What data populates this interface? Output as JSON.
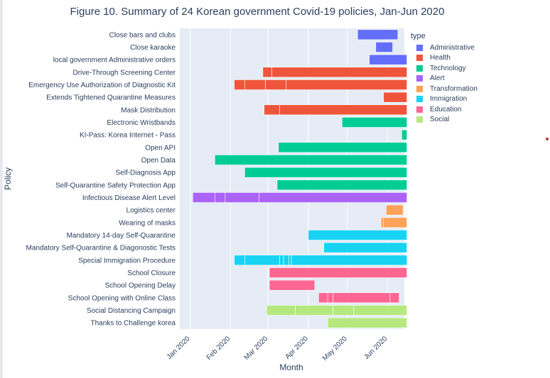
{
  "chart_data": {
    "type": "timeline",
    "title": "Figure 10. Summary of 24 Korean government Covid-19 policies, Jan-Jun 2020",
    "xlabel": "Month",
    "ylabel": "Policy",
    "x_ticks": [
      "Jan 2020",
      "Feb 2020",
      "Mar 2020",
      "Apr 2020",
      "May 2020",
      "Jun 2020"
    ],
    "x_range": [
      "2019-12-24",
      "2020-06-14"
    ],
    "legend_title": "type",
    "legend_position": "top-right",
    "categories": [
      {
        "name": "Administrative",
        "color": "#636efa"
      },
      {
        "name": "Health",
        "color": "#ef553b"
      },
      {
        "name": "Technology",
        "color": "#00cc96"
      },
      {
        "name": "Alert",
        "color": "#ab63fa"
      },
      {
        "name": "Transformation",
        "color": "#ffa15a"
      },
      {
        "name": "Immigration",
        "color": "#19d3f3"
      },
      {
        "name": "Education",
        "color": "#ff6692"
      },
      {
        "name": "Social",
        "color": "#b6e880"
      }
    ],
    "policies": [
      {
        "name": "Close bars and clubs",
        "type": "Administrative",
        "segments": [
          [
            "2020-05-09",
            "2020-06-09"
          ]
        ]
      },
      {
        "name": "Close karaoke",
        "type": "Administrative",
        "segments": [
          [
            "2020-05-23",
            "2020-06-05"
          ]
        ]
      },
      {
        "name": "local government Administrative orders",
        "type": "Administrative",
        "segments": [
          [
            "2020-05-18",
            "2020-06-16"
          ]
        ]
      },
      {
        "name": "Drive-Through Screening Center",
        "type": "Health",
        "segments": [
          [
            "2020-02-26",
            "2020-03-04"
          ],
          [
            "2020-03-04",
            "2020-06-16"
          ]
        ]
      },
      {
        "name": "Emergency Use Authorization of Diagnostic Kit",
        "type": "Health",
        "segments": [
          [
            "2020-02-04",
            "2020-02-12"
          ],
          [
            "2020-02-12",
            "2020-02-28"
          ],
          [
            "2020-02-28",
            "2020-03-15"
          ],
          [
            "2020-03-15",
            "2020-06-16"
          ]
        ]
      },
      {
        "name": "Extends Tightened Quarantine Measures",
        "type": "Health",
        "segments": [
          [
            "2020-05-29",
            "2020-06-16"
          ]
        ]
      },
      {
        "name": "Mask Distribution",
        "type": "Health",
        "segments": [
          [
            "2020-02-27",
            "2020-03-10"
          ],
          [
            "2020-03-10",
            "2020-06-16"
          ]
        ]
      },
      {
        "name": "Electronic Wristbands",
        "type": "Technology",
        "segments": [
          [
            "2020-04-27",
            "2020-06-16"
          ]
        ]
      },
      {
        "name": "KI-Pass: Korea Internet - Pass",
        "type": "Technology",
        "segments": [
          [
            "2020-06-12",
            "2020-06-16"
          ]
        ]
      },
      {
        "name": "Open API",
        "type": "Technology",
        "segments": [
          [
            "2020-03-09",
            "2020-06-16"
          ]
        ]
      },
      {
        "name": "Open Data",
        "type": "Technology",
        "segments": [
          [
            "2020-01-20",
            "2020-06-16"
          ]
        ]
      },
      {
        "name": "Self-Diagnosis App",
        "type": "Technology",
        "segments": [
          [
            "2020-02-12",
            "2020-06-16"
          ]
        ]
      },
      {
        "name": "Self-Quarantine Safety Protection App",
        "type": "Technology",
        "segments": [
          [
            "2020-03-08",
            "2020-06-16"
          ]
        ]
      },
      {
        "name": "Infectious Disease Alert Level",
        "type": "Alert",
        "segments": [
          [
            "2020-01-03",
            "2020-01-20"
          ],
          [
            "2020-01-20",
            "2020-01-28"
          ],
          [
            "2020-01-28",
            "2020-02-23"
          ],
          [
            "2020-02-23",
            "2020-06-16"
          ]
        ]
      },
      {
        "name": "Logistics center",
        "type": "Transformation",
        "segments": [
          [
            "2020-05-31",
            "2020-06-13"
          ]
        ]
      },
      {
        "name": "Wearing of masks",
        "type": "Transformation",
        "segments": [
          [
            "2020-05-27",
            "2020-05-29"
          ],
          [
            "2020-05-29",
            "2020-06-16"
          ]
        ]
      },
      {
        "name": "Mandatory 14-day Self-Quarantine",
        "type": "Immigration",
        "segments": [
          [
            "2020-04-01",
            "2020-06-16"
          ]
        ]
      },
      {
        "name": "Mandatory Self-Quarantine & Diagonostic Tests",
        "type": "Immigration",
        "segments": [
          [
            "2020-04-13",
            "2020-06-16"
          ]
        ]
      },
      {
        "name": "Special Immigration Procedure",
        "type": "Immigration",
        "segments": [
          [
            "2020-02-04",
            "2020-02-12"
          ],
          [
            "2020-02-12",
            "2020-03-10"
          ],
          [
            "2020-03-10",
            "2020-03-13"
          ],
          [
            "2020-03-13",
            "2020-03-17"
          ],
          [
            "2020-03-17",
            "2020-03-19"
          ],
          [
            "2020-03-19",
            "2020-06-16"
          ]
        ]
      },
      {
        "name": "School Closure",
        "type": "Education",
        "segments": [
          [
            "2020-03-02",
            "2020-06-16"
          ]
        ]
      },
      {
        "name": "School Opening Delay",
        "type": "Education",
        "segments": [
          [
            "2020-03-02",
            "2020-04-06"
          ]
        ]
      },
      {
        "name": "School Opening with Online Class",
        "type": "Education",
        "segments": [
          [
            "2020-04-09",
            "2020-04-16"
          ],
          [
            "2020-04-16",
            "2020-04-20"
          ],
          [
            "2020-04-20",
            "2020-06-03"
          ],
          [
            "2020-06-03",
            "2020-06-10"
          ]
        ]
      },
      {
        "name": "Social Distancing Campaign",
        "type": "Social",
        "segments": [
          [
            "2020-02-29",
            "2020-03-22"
          ],
          [
            "2020-03-22",
            "2020-04-20"
          ],
          [
            "2020-04-20",
            "2020-05-06"
          ],
          [
            "2020-05-06",
            "2020-06-16"
          ]
        ]
      },
      {
        "name": "Thanks to Challenge korea",
        "type": "Social",
        "segments": [
          [
            "2020-04-16",
            "2020-06-16"
          ]
        ]
      }
    ]
  }
}
